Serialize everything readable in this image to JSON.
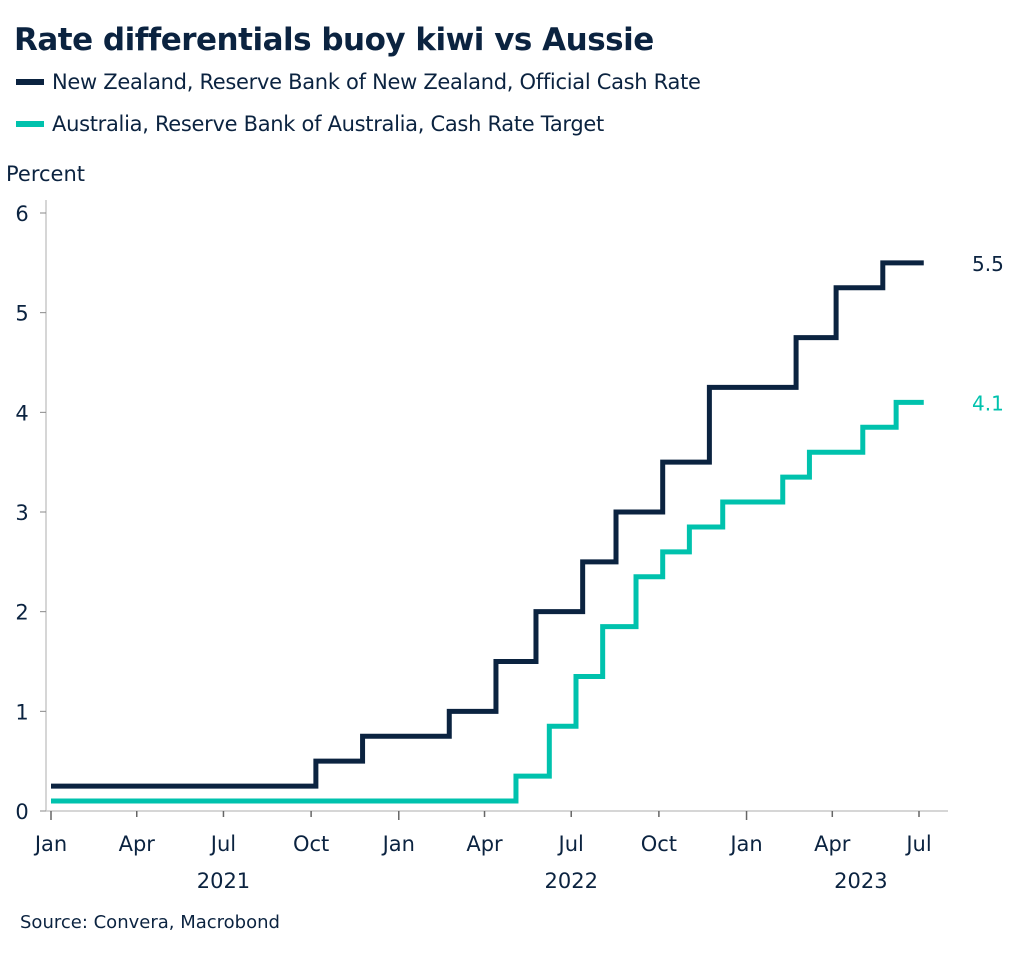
{
  "chart_data": {
    "type": "line",
    "title": "Rate differentials buoy kiwi vs Aussie",
    "ylabel": "Percent",
    "ylim": [
      0,
      6
    ],
    "yticks": [
      "0",
      "1",
      "2",
      "3",
      "4",
      "5",
      "6"
    ],
    "xlim": [
      "2021-01-01",
      "2023-07-31"
    ],
    "xticks": [
      {
        "date": "2021-01-01",
        "label": "Jan"
      },
      {
        "date": "2021-04-01",
        "label": "Apr"
      },
      {
        "date": "2021-07-01",
        "label": "Jul"
      },
      {
        "date": "2021-10-01",
        "label": "Oct"
      },
      {
        "date": "2022-01-01",
        "label": "Jan"
      },
      {
        "date": "2022-04-01",
        "label": "Apr"
      },
      {
        "date": "2022-07-01",
        "label": "Jul"
      },
      {
        "date": "2022-10-01",
        "label": "Oct"
      },
      {
        "date": "2023-01-01",
        "label": "Jan"
      },
      {
        "date": "2023-04-01",
        "label": "Apr"
      },
      {
        "date": "2023-07-01",
        "label": "Jul"
      }
    ],
    "year_labels": [
      {
        "date": "2021-07-01",
        "label": "2021"
      },
      {
        "date": "2022-07-01",
        "label": "2022"
      },
      {
        "date": "2023-05-01",
        "label": "2023"
      }
    ],
    "grid": false,
    "legend_position": "top-left",
    "series": [
      {
        "name": "New Zealand, Reserve Bank of New Zealand, Official Cash Rate",
        "color": "#0b2340",
        "end_label": "5.5",
        "step": true,
        "points": [
          [
            "2021-01-01",
            0.25
          ],
          [
            "2021-10-06",
            0.5
          ],
          [
            "2021-11-24",
            0.75
          ],
          [
            "2022-02-23",
            1.0
          ],
          [
            "2022-04-13",
            1.5
          ],
          [
            "2022-05-25",
            2.0
          ],
          [
            "2022-07-13",
            2.5
          ],
          [
            "2022-08-17",
            3.0
          ],
          [
            "2022-10-05",
            3.5
          ],
          [
            "2022-11-23",
            4.25
          ],
          [
            "2023-02-22",
            4.75
          ],
          [
            "2023-04-05",
            5.25
          ],
          [
            "2023-05-24",
            5.5
          ],
          [
            "2023-07-06",
            5.5
          ]
        ]
      },
      {
        "name": "Australia, Reserve Bank of Australia, Cash Rate Target",
        "color": "#00c2ad",
        "end_label": "4.1",
        "step": true,
        "points": [
          [
            "2021-01-01",
            0.1
          ],
          [
            "2022-05-04",
            0.35
          ],
          [
            "2022-06-08",
            0.85
          ],
          [
            "2022-07-06",
            1.35
          ],
          [
            "2022-08-03",
            1.85
          ],
          [
            "2022-09-07",
            2.35
          ],
          [
            "2022-10-05",
            2.6
          ],
          [
            "2022-11-02",
            2.85
          ],
          [
            "2022-12-07",
            3.1
          ],
          [
            "2023-02-08",
            3.35
          ],
          [
            "2023-03-08",
            3.6
          ],
          [
            "2023-05-03",
            3.85
          ],
          [
            "2023-06-07",
            4.1
          ],
          [
            "2023-07-06",
            4.1
          ]
        ]
      }
    ],
    "source": "Source: Convera, Macrobond"
  }
}
